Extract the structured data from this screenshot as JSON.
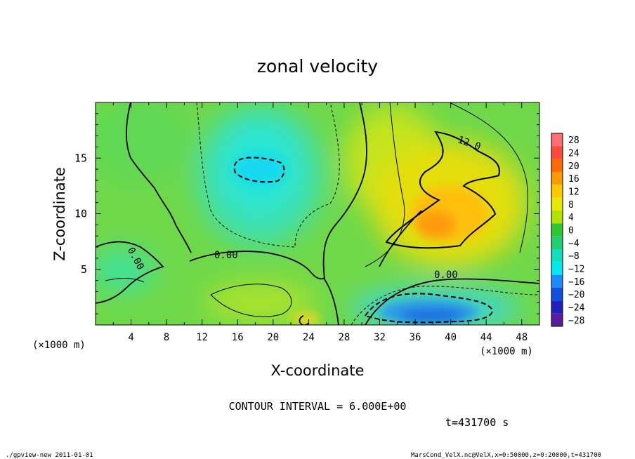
{
  "chart_data": {
    "type": "heatmap",
    "title": "zonal velocity",
    "xlabel": "X-coordinate",
    "ylabel": "Z-coordinate",
    "x_unit_label": "(×1000 m)",
    "y_unit_label": "(×1000 m)",
    "xlim": [
      0,
      50
    ],
    "ylim": [
      0,
      20
    ],
    "x_ticks": [
      "4",
      "8",
      "12",
      "16",
      "20",
      "24",
      "28",
      "32",
      "36",
      "40",
      "44",
      "48"
    ],
    "y_ticks": [
      "5",
      "10",
      "15"
    ],
    "colorbar_labels": [
      "28",
      "24",
      "20",
      "16",
      "12",
      "8",
      "4",
      "0",
      "−4",
      "−8",
      "−12",
      "−16",
      "−20",
      "−24",
      "−28"
    ],
    "colorbar_colors": [
      "#ff6f6f",
      "#ff4a3a",
      "#ff6a00",
      "#ff9a00",
      "#ffc800",
      "#e8e800",
      "#b0e400",
      "#2ec82e",
      "#20d070",
      "#10e0c0",
      "#00e8f0",
      "#1a8cff",
      "#1050e0",
      "#2020c0",
      "#5b1aa0"
    ],
    "contour_labels": [
      "0.00",
      "0.00",
      "0.00",
      "12.0"
    ],
    "contour_interval_text": "CONTOUR INTERVAL = 6.000E+00",
    "time_text": "t=431700 s",
    "footer_left": "./gpview-new  2011-01-01",
    "footer_right": "MarsCond_VelX.nc@VelX,x=0:50000,z=0:20000,t=431700"
  }
}
